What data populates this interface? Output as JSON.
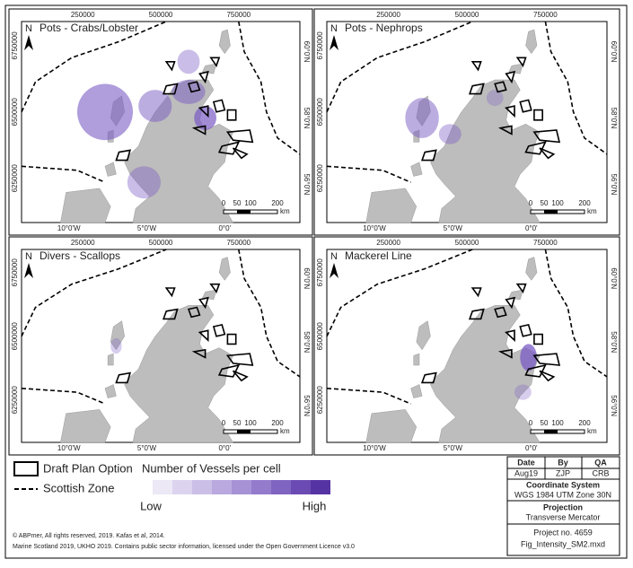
{
  "panels": [
    {
      "title": "Pots - Crabs/Lobster"
    },
    {
      "title": "Pots - Nephrops"
    },
    {
      "title": "Divers - Scallops"
    },
    {
      "title": "Mackerel Line"
    }
  ],
  "north": "N",
  "axis_labels": {
    "top": [
      "250000",
      "500000",
      "750000"
    ],
    "bottom": [
      "10°0'W",
      "5°0'W",
      "0°0'"
    ],
    "left": [
      "6750000",
      "6500000",
      "6250000"
    ],
    "right": [
      "60°0'N",
      "58°0'N",
      "56°0'N"
    ]
  },
  "scale_bar": {
    "ticks": [
      "0",
      "50",
      "100",
      "200"
    ],
    "unit": "km"
  },
  "legend": {
    "draft_plan": "Draft Plan Option",
    "scottish_zone": "Scottish Zone",
    "vessels_title": "Number of Vessels per cell",
    "low": "Low",
    "high": "High",
    "ramp_colors": [
      "#ece8f6",
      "#dcd4ef",
      "#cbbfe7",
      "#b9a9df",
      "#a792d6",
      "#947bcc",
      "#8064c1",
      "#6b4bb3",
      "#5633a3"
    ]
  },
  "info": {
    "headers": [
      "Date",
      "By",
      "QA"
    ],
    "values": [
      "Aug19",
      "ZJP",
      "CRB"
    ],
    "coord_title": "Coordinate System",
    "coord_value": "WGS 1984 UTM Zone 30N",
    "proj_title": "Projection",
    "proj_value": "Transverse Mercator",
    "project_no": "Project no. 4659",
    "file": "Fig_Intensity_SM2.mxd"
  },
  "credits": [
    "© ABPmer, All rights reserved, 2019. Kafas et al, 2014.",
    "Marine Scotland 2019, UKHO 2019. Contains public sector information, licensed under the Open Government Licence v3.0"
  ]
}
